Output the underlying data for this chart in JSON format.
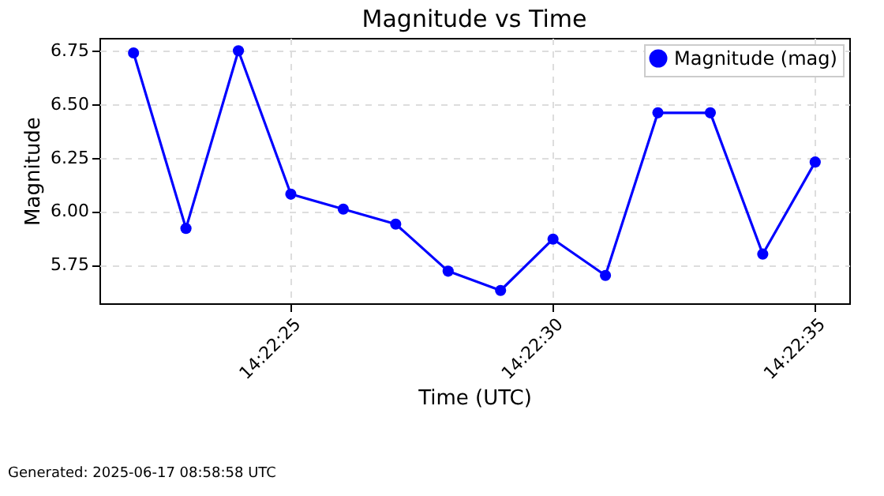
{
  "chart_data": {
    "type": "line",
    "title": "Magnitude vs Time",
    "xlabel": "Time (UTC)",
    "ylabel": "Magnitude",
    "x": [
      "2025-06-17T14:22:22",
      "2025-06-17T14:22:23",
      "2025-06-17T14:22:24",
      "2025-06-17T14:22:25",
      "2025-06-17T14:22:26",
      "2025-06-17T14:22:27",
      "2025-06-17T14:22:28",
      "2025-06-17T14:22:29",
      "2025-06-17T14:22:30",
      "2025-06-17T14:22:31",
      "2025-06-17T14:22:32",
      "2025-06-17T14:22:33",
      "2025-06-17T14:22:34",
      "2025-06-17T14:22:35"
    ],
    "series": [
      {
        "name": "Magnitude (mag)",
        "color": "#0000ff",
        "values": [
          6.74,
          5.92,
          6.75,
          6.08,
          6.01,
          5.94,
          5.72,
          5.63,
          5.87,
          5.7,
          6.46,
          6.46,
          5.8,
          6.23
        ]
      }
    ],
    "xlim": [
      "2025-06-17T14:22:21.35",
      "2025-06-17T14:22:35.65"
    ],
    "xticks": [
      {
        "value": "2025-06-17T14:22:25",
        "label": "14:22:25"
      },
      {
        "value": "2025-06-17T14:22:30",
        "label": "14:22:30"
      },
      {
        "value": "2025-06-17T14:22:35",
        "label": "14:22:35"
      }
    ],
    "ylim": [
      5.57,
      6.81
    ],
    "yticks": [
      {
        "value": 5.75,
        "label": "5.75"
      },
      {
        "value": 6.0,
        "label": "6.00"
      },
      {
        "value": 6.25,
        "label": "6.25"
      },
      {
        "value": 6.5,
        "label": "6.50"
      },
      {
        "value": 6.75,
        "label": "6.75"
      }
    ],
    "grid": true,
    "legend": "top right",
    "marker": "circle",
    "line_style": "solid",
    "annotations": [
      "Generated: 2025-06-17 08:58:58 UTC"
    ]
  }
}
